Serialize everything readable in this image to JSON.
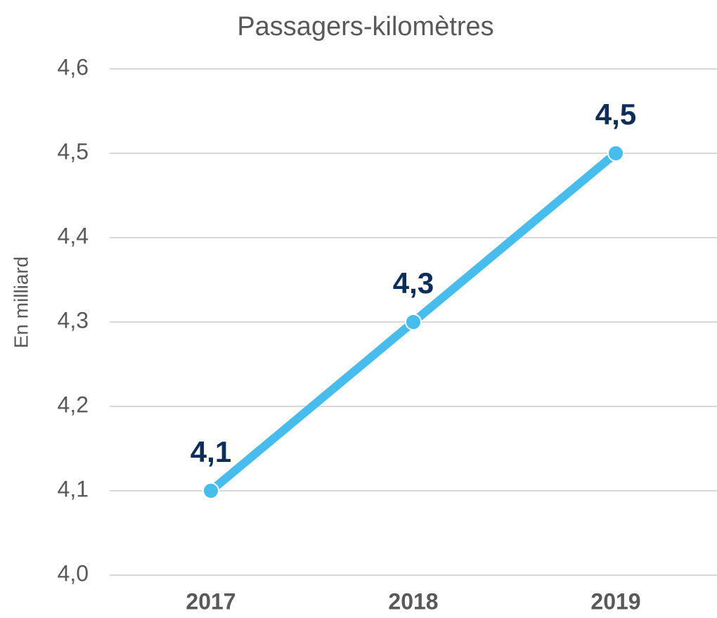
{
  "chart_data": {
    "type": "line",
    "title": "Passagers-kilomètres",
    "y_label": "En milliard",
    "categories": [
      "2017",
      "2018",
      "2019"
    ],
    "values": [
      4.1,
      4.3,
      4.5
    ],
    "value_labels": [
      "4,1",
      "4,3",
      "4,5"
    ],
    "color": "#47bdee",
    "ylim": [
      4.0,
      4.6
    ],
    "yticks": [
      {
        "value": 4.0,
        "label": "4,0"
      },
      {
        "value": 4.1,
        "label": "4,1"
      },
      {
        "value": 4.2,
        "label": "4,2"
      },
      {
        "value": 4.3,
        "label": "4,3"
      },
      {
        "value": 4.4,
        "label": "4,4"
      },
      {
        "value": 4.5,
        "label": "4,5"
      },
      {
        "value": 4.6,
        "label": "4,6"
      }
    ],
    "grid": true
  }
}
